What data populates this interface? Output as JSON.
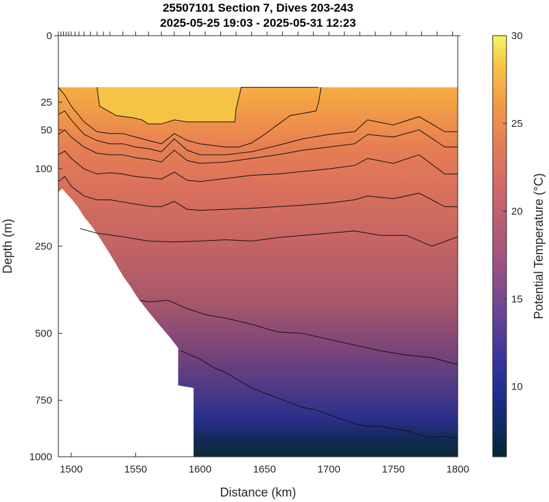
{
  "chart_data": {
    "type": "heatmap",
    "title": "25507101 Section 7, Dives 203-243",
    "subtitle": "2025-05-25 19:03 - 2025-05-31 12:23",
    "xlabel": "Distance (km)",
    "ylabel": "Depth (m)",
    "colorbar_label": "Potential Temperature (°C)",
    "xlim": [
      1490,
      1800
    ],
    "ylim": [
      0,
      1000
    ],
    "y_scale": "sqrt",
    "x_ticks": [
      1500,
      1550,
      1600,
      1650,
      1700,
      1750,
      1800
    ],
    "y_ticks": [
      0,
      25,
      50,
      100,
      250,
      500,
      750,
      1000
    ],
    "colorbar_range": [
      6,
      30
    ],
    "colorbar_ticks": [
      10,
      15,
      20,
      25,
      30
    ],
    "grid": false,
    "data_top_depth": 15,
    "dive_x": [
      1490,
      1492,
      1494,
      1496,
      1498,
      1500,
      1503,
      1506,
      1510,
      1515,
      1520,
      1525,
      1530,
      1540,
      1550,
      1560,
      1570,
      1580,
      1592,
      1604,
      1616,
      1628,
      1640,
      1652,
      1664,
      1676,
      1688,
      1700,
      1712,
      1724,
      1736,
      1748,
      1760,
      1772,
      1784,
      1796
    ],
    "bottom_profile": {
      "x": [
        1490,
        1493,
        1496,
        1500,
        1505,
        1510,
        1516,
        1522,
        1528,
        1534,
        1540,
        1546,
        1552,
        1558,
        1564,
        1570,
        1576,
        1583,
        1583,
        1595,
        1595
      ],
      "depth": [
        138,
        132,
        140,
        150,
        165,
        185,
        205,
        230,
        258,
        290,
        325,
        355,
        390,
        420,
        450,
        480,
        510,
        550,
        690,
        700,
        1000
      ]
    },
    "contours": [
      {
        "level": 26,
        "x": [
          1520,
          1522,
          1535,
          1548,
          1555,
          1560,
          1570,
          1580,
          1590,
          1604,
          1616,
          1627,
          1628,
          1632,
          1640,
          1660,
          1680,
          1690,
          1692
        ],
        "depth": [
          15,
          28,
          36,
          38,
          40,
          44,
          44,
          40,
          42,
          42,
          42,
          42,
          30,
          15,
          15,
          15,
          15,
          15,
          15
        ]
      },
      {
        "level": 25,
        "x": [
          1490,
          1495,
          1500,
          1510,
          1520,
          1530,
          1540,
          1550,
          1560,
          1570,
          1580,
          1590,
          1600,
          1610,
          1620,
          1630,
          1640,
          1650,
          1660,
          1670,
          1680,
          1690,
          1692,
          1694
        ],
        "depth": [
          15,
          20,
          28,
          42,
          52,
          54,
          54,
          58,
          62,
          66,
          54,
          62,
          66,
          68,
          70,
          70,
          65,
          55,
          45,
          36,
          34,
          32,
          25,
          15
        ]
      },
      {
        "level": 24,
        "x": [
          1490,
          1495,
          1500,
          1510,
          1520,
          1530,
          1540,
          1550,
          1560,
          1570,
          1580,
          1590,
          1600,
          1620,
          1640,
          1660,
          1680,
          1700,
          1720,
          1730,
          1750,
          1770,
          1790,
          1800
        ],
        "depth": [
          35,
          32,
          40,
          55,
          62,
          66,
          66,
          70,
          72,
          76,
          60,
          74,
          80,
          80,
          76,
          68,
          60,
          55,
          52,
          40,
          45,
          37,
          52,
          52
        ]
      },
      {
        "level": 23,
        "x": [
          1490,
          1495,
          1500,
          1510,
          1520,
          1530,
          1540,
          1550,
          1560,
          1570,
          1580,
          1590,
          1600,
          1620,
          1640,
          1660,
          1680,
          1700,
          1720,
          1730,
          1750,
          1770,
          1790,
          1800
        ],
        "depth": [
          55,
          50,
          58,
          70,
          78,
          80,
          80,
          84,
          86,
          90,
          74,
          88,
          92,
          90,
          85,
          80,
          74,
          70,
          66,
          55,
          58,
          50,
          70,
          70
        ]
      },
      {
        "level": 22,
        "x": [
          1490,
          1495,
          1500,
          1510,
          1520,
          1530,
          1540,
          1550,
          1560,
          1570,
          1580,
          1590,
          1600,
          1620,
          1640,
          1660,
          1680,
          1700,
          1720,
          1730,
          1750,
          1770,
          1790,
          1800
        ],
        "depth": [
          80,
          75,
          85,
          100,
          108,
          106,
          108,
          112,
          114,
          116,
          105,
          118,
          120,
          115,
          110,
          108,
          104,
          100,
          95,
          85,
          92,
          80,
          108,
          108
        ]
      },
      {
        "level": 21,
        "x": [
          1490,
          1495,
          1500,
          1510,
          1520,
          1530,
          1540,
          1550,
          1560,
          1570,
          1580,
          1590,
          1600,
          1620,
          1640,
          1660,
          1680,
          1700,
          1720,
          1730,
          1750,
          1770,
          1790,
          1800
        ],
        "depth": [
          120,
          112,
          128,
          145,
          152,
          152,
          156,
          160,
          164,
          165,
          155,
          170,
          172,
          170,
          168,
          165,
          162,
          158,
          152,
          145,
          150,
          140,
          165,
          165
        ]
      },
      {
        "level": 20,
        "x": [
          1507,
          1520,
          1540,
          1560,
          1580,
          1600,
          1620,
          1640,
          1660,
          1680,
          1700,
          1720,
          1740,
          1760,
          1780,
          1800
        ],
        "depth": [
          210,
          220,
          228,
          238,
          240,
          238,
          235,
          238,
          230,
          225,
          220,
          215,
          225,
          225,
          250,
          228
        ]
      },
      {
        "level": 18,
        "x": [
          1553,
          1560,
          1575,
          1590,
          1605,
          1620,
          1640,
          1660,
          1680,
          1700,
          1720,
          1740,
          1760,
          1780,
          1800
        ],
        "depth": [
          395,
          400,
          395,
          420,
          440,
          450,
          470,
          495,
          500,
          520,
          540,
          560,
          575,
          585,
          610
        ]
      },
      {
        "level": 15,
        "x": [
          1585,
          1590,
          1600,
          1610,
          1620,
          1630,
          1640,
          1650,
          1660,
          1670,
          1680,
          1690,
          1700,
          1710,
          1720,
          1730,
          1740,
          1750,
          1760,
          1770,
          1780,
          1790,
          1800
        ],
        "depth": [
          560,
          570,
          590,
          620,
          640,
          670,
          700,
          720,
          740,
          760,
          780,
          790,
          810,
          830,
          850,
          860,
          860,
          870,
          880,
          900,
          910,
          905,
          915
        ]
      }
    ]
  }
}
